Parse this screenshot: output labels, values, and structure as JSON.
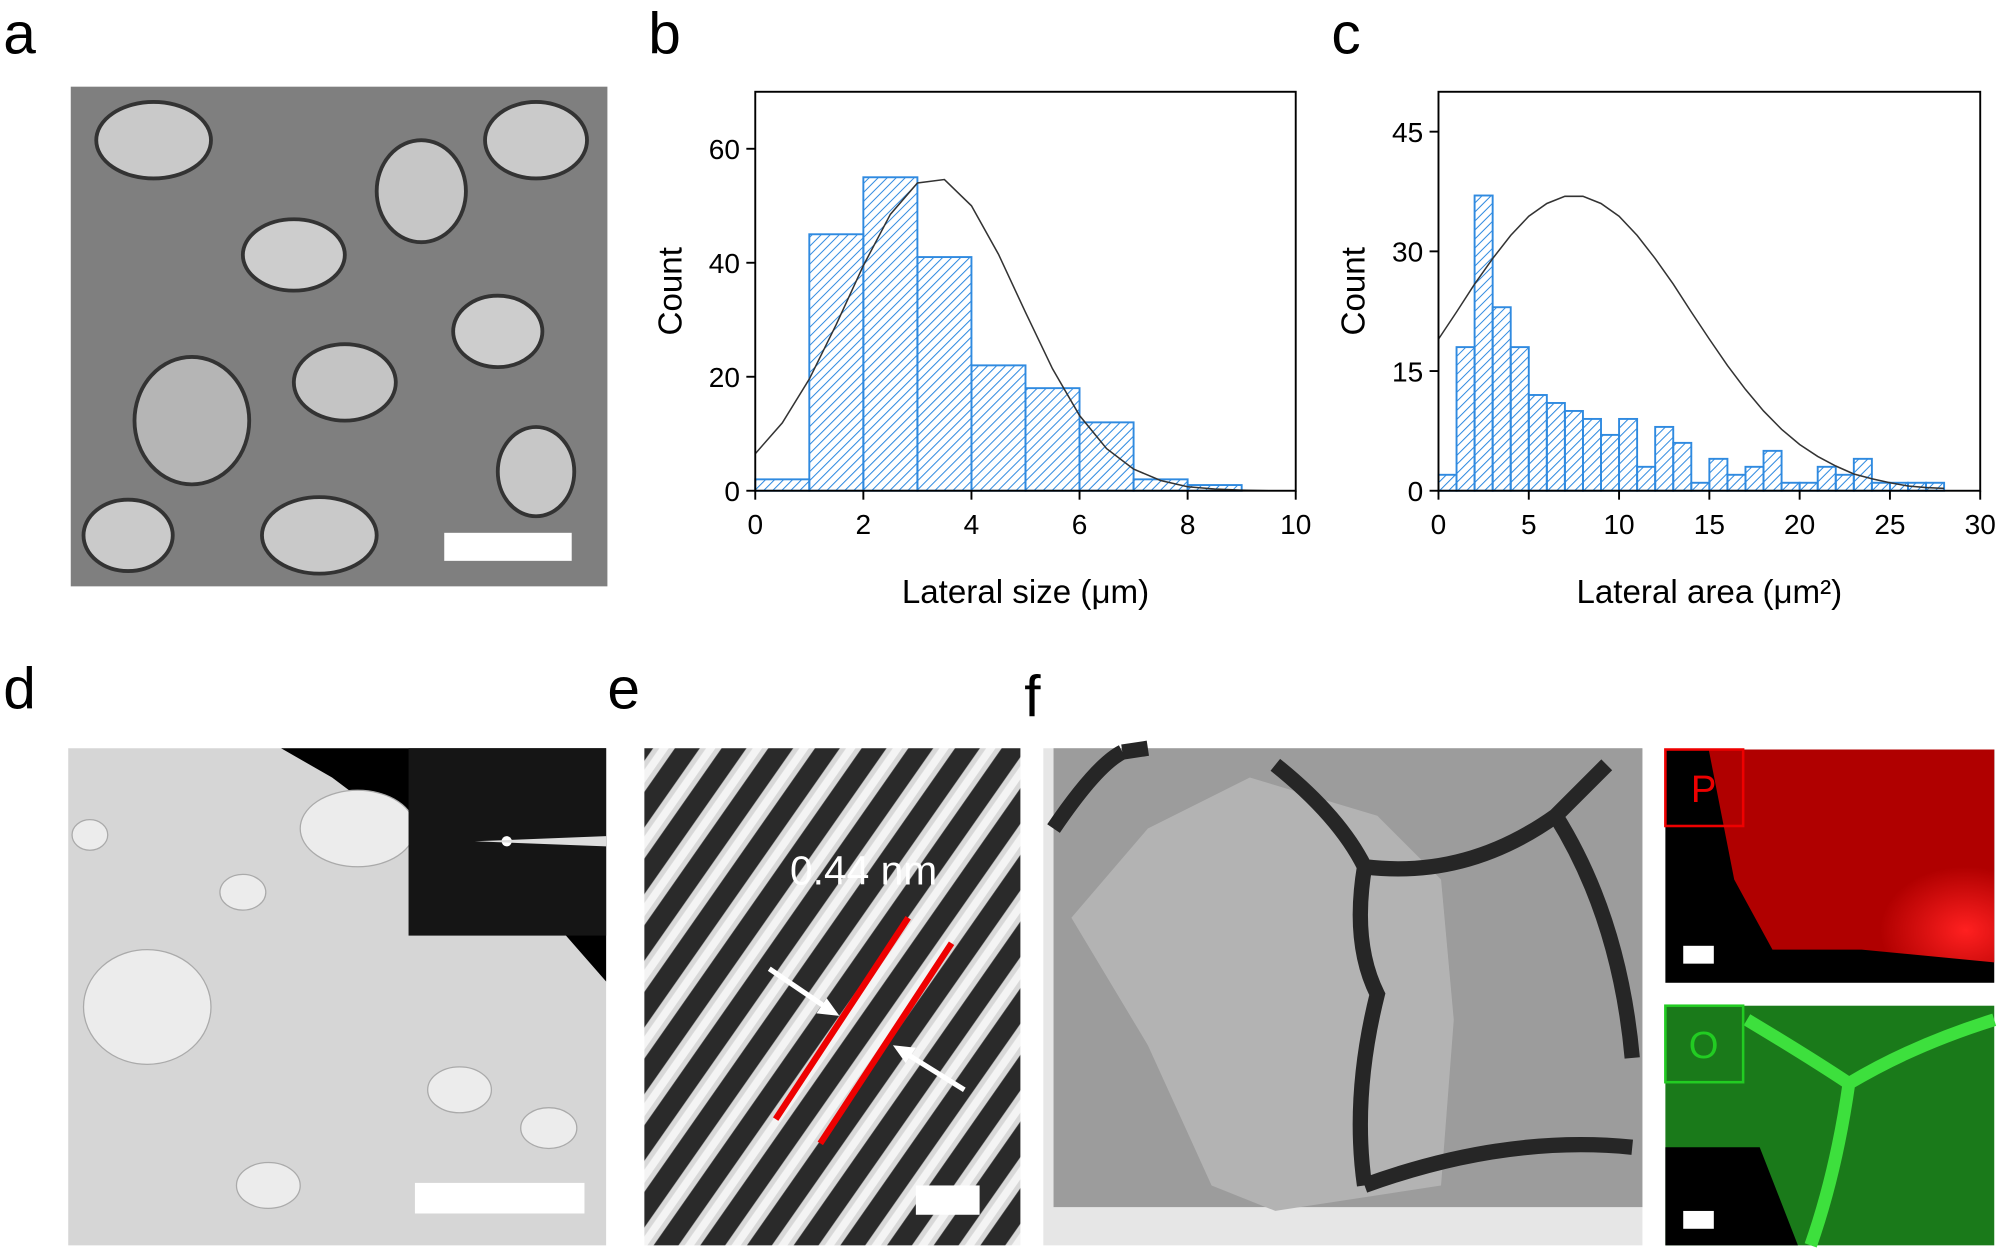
{
  "panel_labels": [
    "a",
    "b",
    "c",
    "d",
    "e",
    "f"
  ],
  "annotations": {
    "spacing": "0.44 nm",
    "map_p": "P",
    "map_o": "O"
  },
  "chart_data": [
    {
      "type": "histogram",
      "color": "#2f8ae0",
      "x_label": "Lateral size (μm)",
      "y_label": "Count",
      "bins": [
        0,
        1,
        2,
        3,
        4,
        5,
        6,
        7,
        8,
        9
      ],
      "values": [
        2,
        45,
        55,
        41,
        22,
        18,
        12,
        2,
        1
      ],
      "xlim": [
        0,
        10
      ],
      "xticks": [
        0,
        2,
        4,
        6,
        8,
        10
      ],
      "ylim": [
        0,
        70
      ],
      "yticks": [
        0,
        20,
        40,
        60
      ],
      "fit": {
        "color": "#333333",
        "x": [
          0,
          0.5,
          1,
          1.5,
          2,
          2.5,
          3,
          3.5,
          4,
          4.5,
          5,
          5.5,
          6,
          6.5,
          7,
          7.5,
          8,
          8.5,
          9,
          9.5,
          10
        ],
        "values": [
          6.5,
          11.9,
          19.6,
          29.2,
          39.5,
          48.5,
          54.0,
          54.6,
          50.0,
          41.5,
          31.3,
          21.4,
          13.2,
          7.4,
          3.8,
          1.8,
          0.7,
          0.3,
          0.1,
          0,
          0
        ]
      }
    },
    {
      "type": "histogram",
      "color": "#2f8ae0",
      "x_label": "Lateral area (μm²)",
      "y_label": "Count",
      "bins": [
        0,
        1,
        2,
        3,
        4,
        5,
        6,
        7,
        8,
        9,
        10,
        11,
        12,
        13,
        14,
        15,
        16,
        17,
        18,
        19,
        20,
        21,
        22,
        23,
        24,
        25,
        26,
        27,
        28
      ],
      "values": [
        2,
        18,
        37,
        23,
        18,
        12,
        11,
        10,
        9,
        7,
        9,
        3,
        8,
        6,
        1,
        4,
        2,
        3,
        5,
        1,
        1,
        3,
        2,
        4,
        1,
        1,
        1,
        1
      ],
      "xlim": [
        0,
        30
      ],
      "xticks": [
        0,
        5,
        10,
        15,
        20,
        25,
        30
      ],
      "ylim": [
        0,
        50
      ],
      "yticks": [
        0,
        15,
        30,
        45
      ],
      "fit": {
        "color": "#333333",
        "x": [
          0,
          1,
          2,
          3,
          4,
          5,
          6,
          7,
          8,
          9,
          10,
          11,
          12,
          13,
          14,
          15,
          16,
          17,
          18,
          19,
          20,
          21,
          22,
          23,
          24,
          25,
          26,
          27,
          28
        ],
        "values": [
          19.0,
          22.4,
          25.9,
          29.1,
          32.0,
          34.4,
          36.0,
          36.9,
          36.9,
          36.0,
          34.4,
          32.0,
          29.1,
          25.9,
          22.4,
          19.0,
          15.7,
          12.7,
          10.0,
          7.7,
          5.8,
          4.3,
          3.1,
          2.1,
          1.5,
          1.0,
          0.6,
          0.4,
          0.3
        ]
      }
    }
  ]
}
